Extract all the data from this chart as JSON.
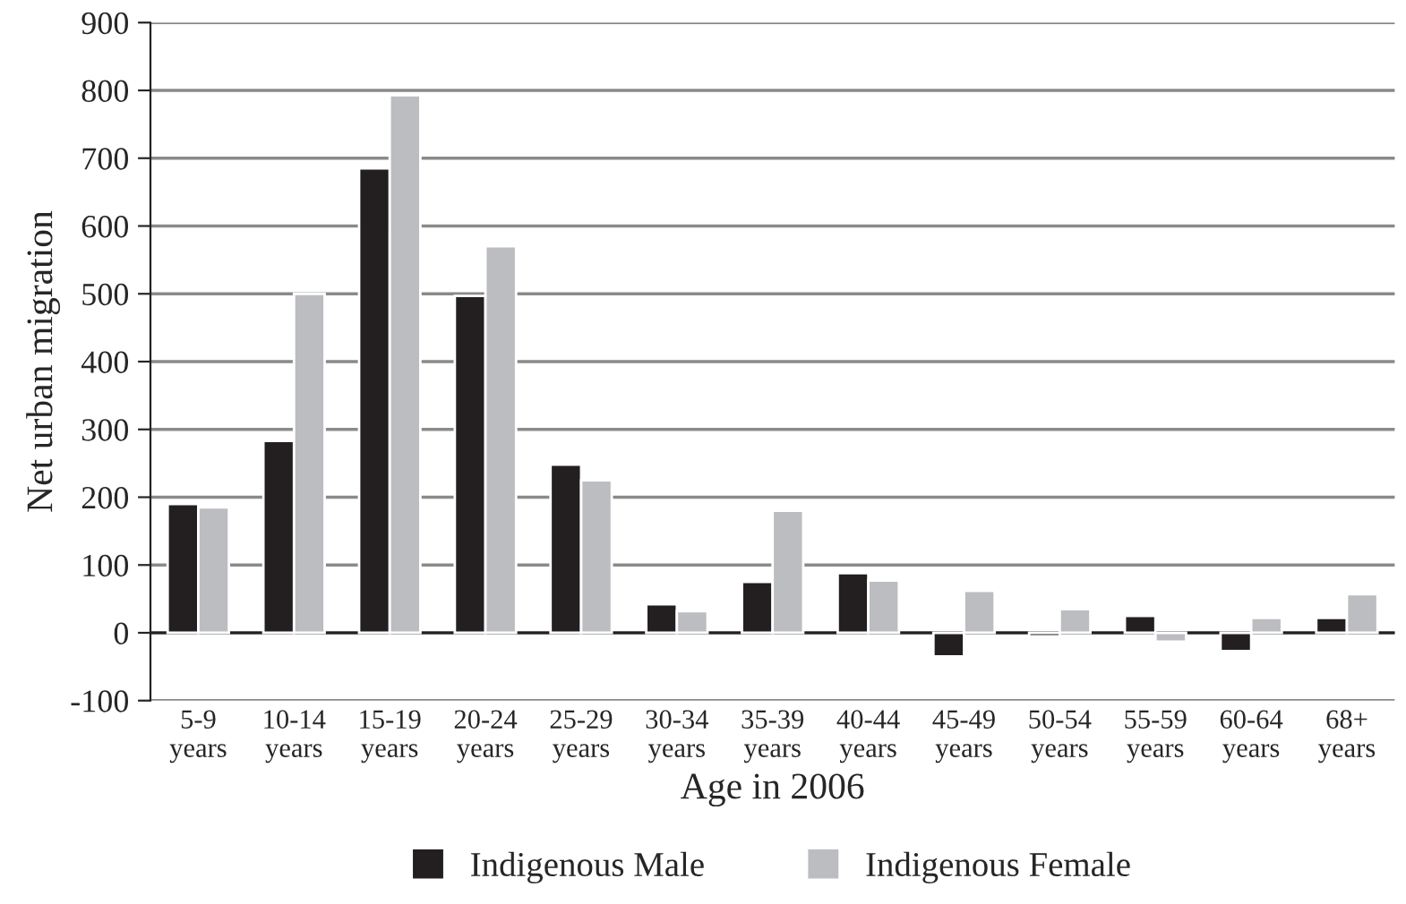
{
  "chart_data": {
    "type": "bar",
    "xlabel": "Age in 2006",
    "ylabel": "Net urban migration",
    "categories": [
      "5-9\nyears",
      "10-14\nyears",
      "15-19\nyears",
      "20-24\nyears",
      "25-29\nyears",
      "30-34\nyears",
      "35-39\nyears",
      "40-44\nyears",
      "45-49\nyears",
      "50-54\nyears",
      "55-59\nyears",
      "60-64\nyears",
      "68+\nyears"
    ],
    "series": [
      {
        "name": "Indigenous Male",
        "color": "#231f20",
        "values": [
          190,
          283,
          685,
          497,
          248,
          42,
          75,
          88,
          -35,
          -5,
          25,
          -27,
          22
        ]
      },
      {
        "name": "Indigenous Female",
        "color": "#bcbdc0",
        "values": [
          185,
          500,
          793,
          570,
          225,
          32,
          180,
          77,
          62,
          35,
          -13,
          22,
          57
        ]
      }
    ],
    "ylim": [
      -100,
      900
    ],
    "yticks": [
      -100,
      0,
      100,
      200,
      300,
      400,
      500,
      600,
      700,
      800,
      900
    ],
    "grid": "y",
    "legend": "bottom"
  }
}
